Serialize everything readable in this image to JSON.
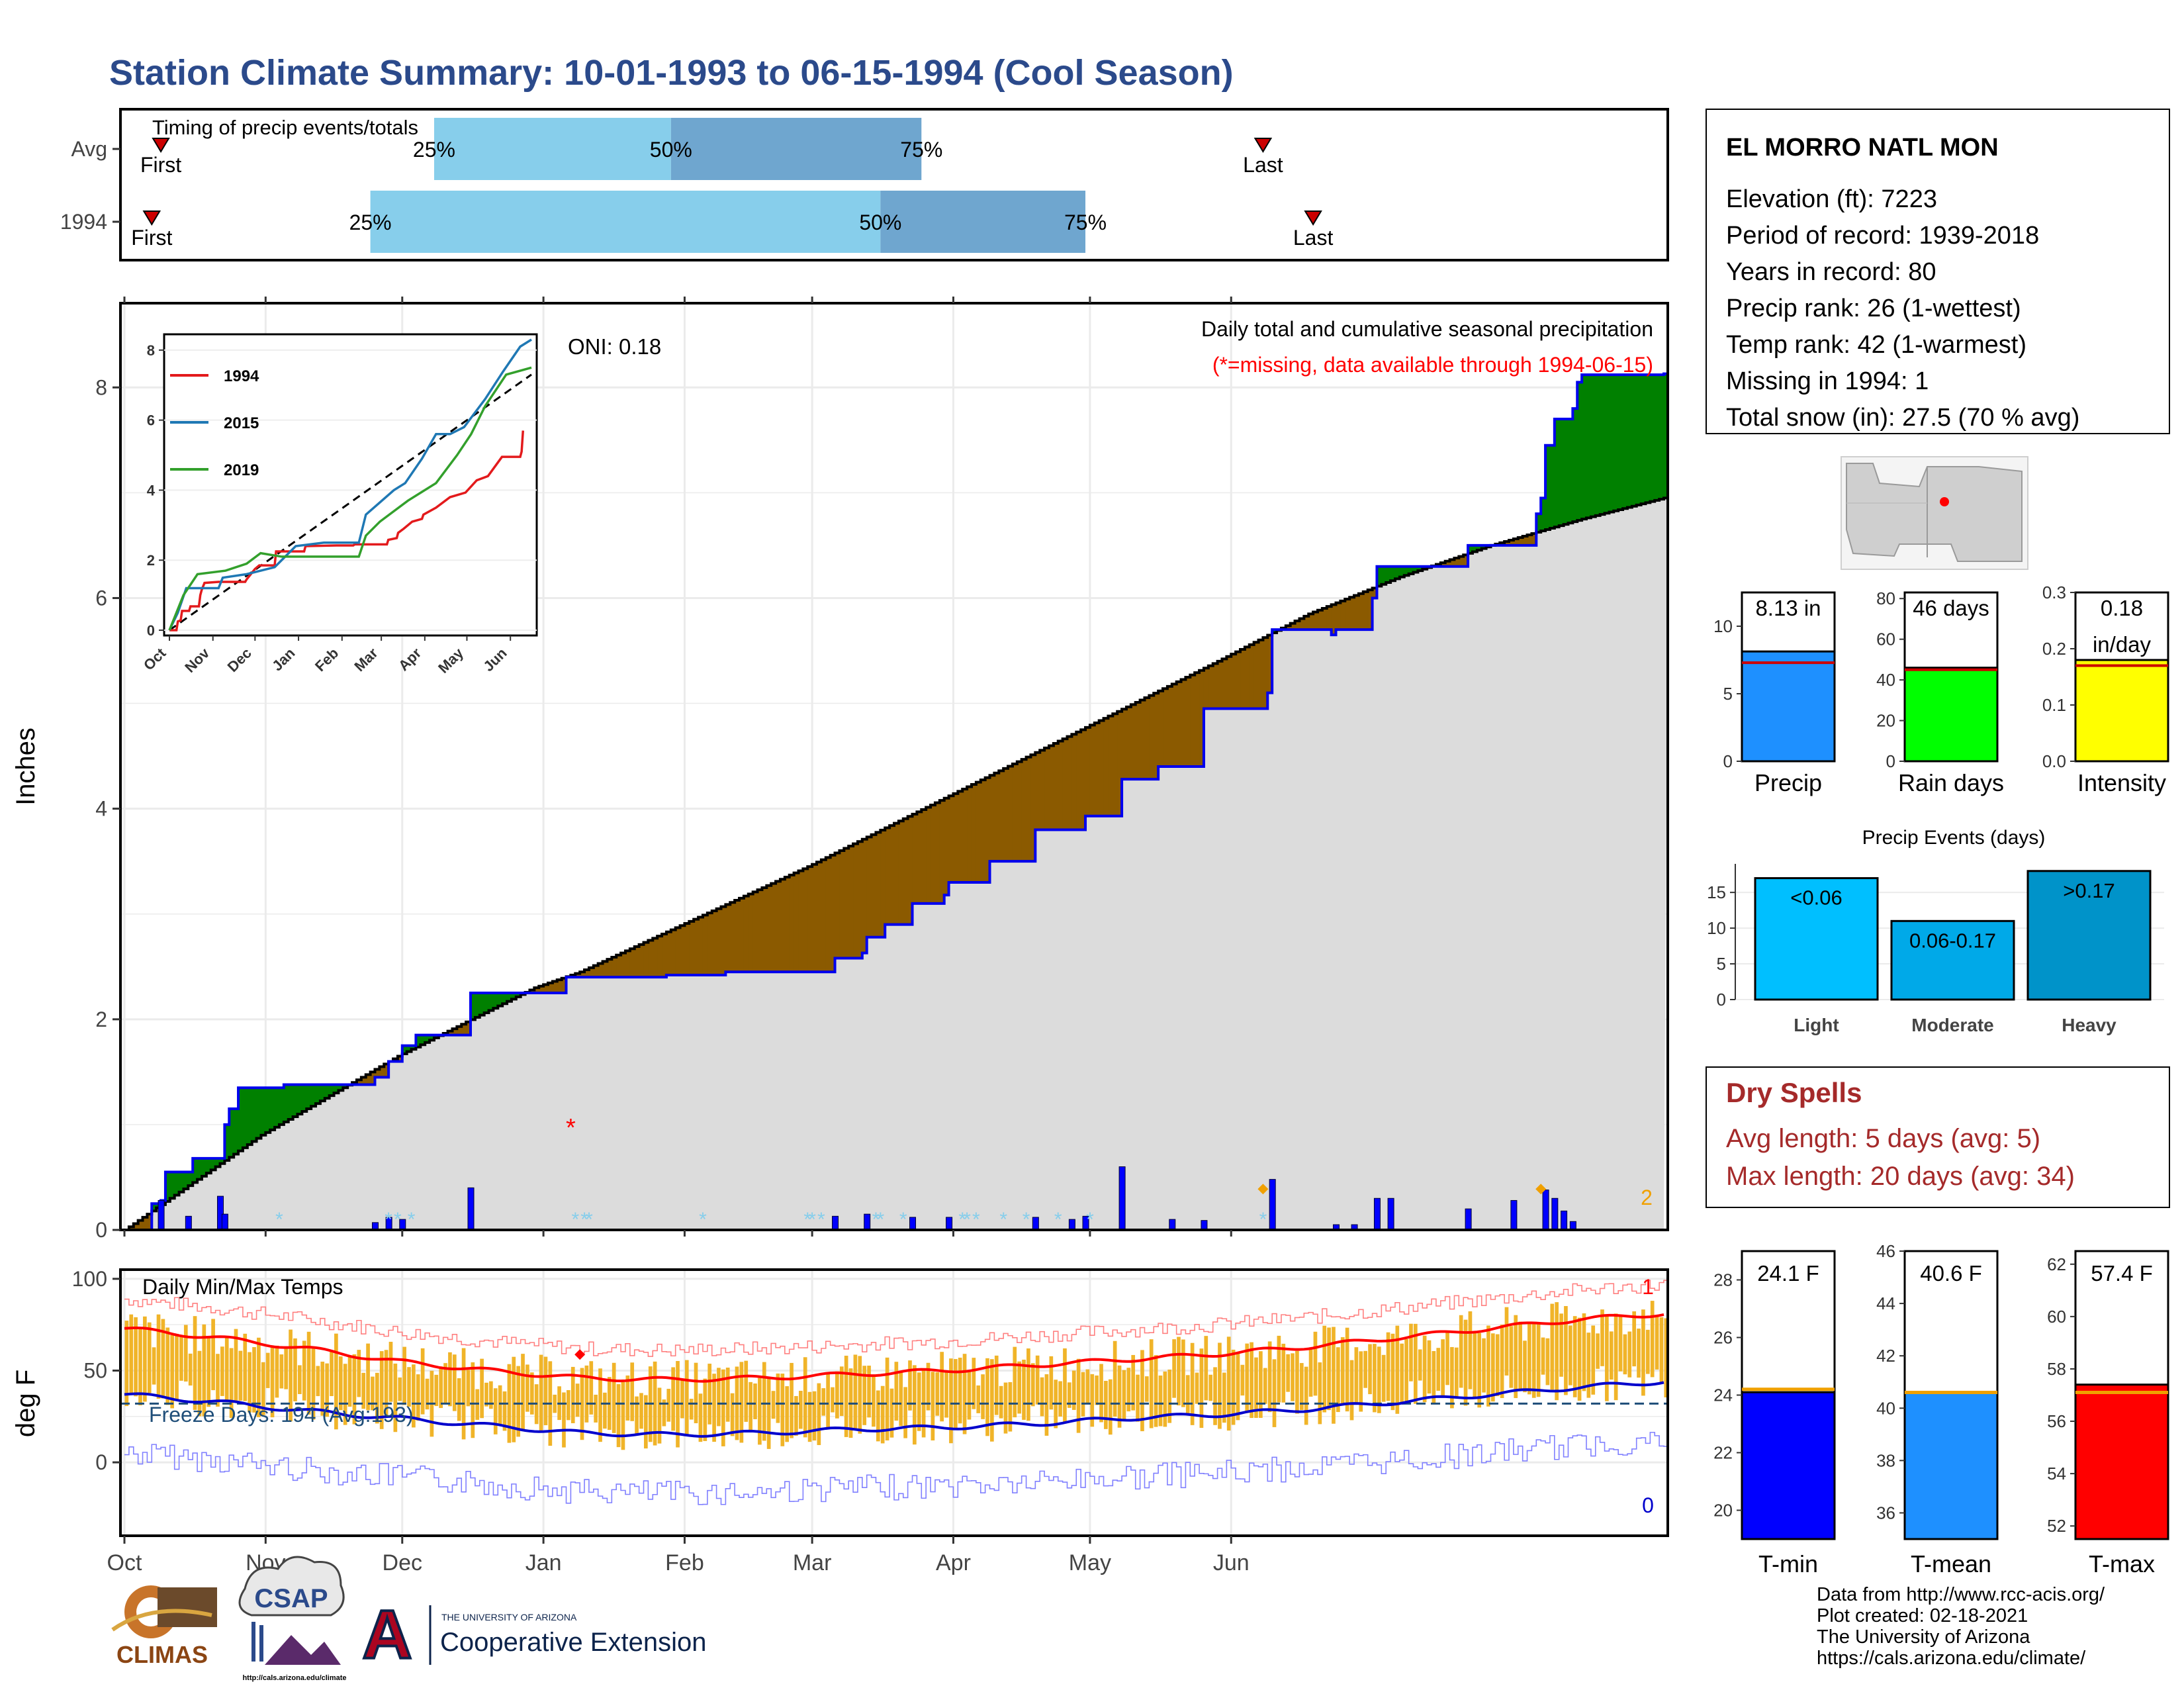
{
  "title": "Station Climate Summary: 10-01-1993 to 06-15-1994 (Cool Season)",
  "colors": {
    "title": "#2b4a8b",
    "q1": "#87ceeb",
    "q2": "#6fa6cf",
    "marker": "#cc0000",
    "above": "#008000",
    "below": "#8b5a00",
    "cumline": "#0000ee",
    "bars": "#0000ff",
    "snow": "#87ceeb",
    "avgcum": "#dcdcdc",
    "temp_bar": "#f0b429",
    "tmax": "#ff0000",
    "tmin": "#0000cc",
    "frost_line": "#1f4e79",
    "dry": "#a52a2a"
  },
  "timing": {
    "label": "Timing of precip events/totals",
    "rows": [
      {
        "name": "Avg",
        "first_label": "First",
        "last_label": "Last",
        "first": 8,
        "p25": 68,
        "p50": 120,
        "p75": 175,
        "last": 250
      },
      {
        "name": "1994",
        "first_label": "First",
        "last_label": "Last",
        "first": 6,
        "p25": 54,
        "p50": 166,
        "p75": 211,
        "last": 261
      }
    ],
    "pct_labels": [
      "25%",
      "50%",
      "75%"
    ]
  },
  "precip_panel": {
    "header": "Daily total and cumulative seasonal precipitation",
    "missing_note": "(*=missing, data available through 1994-06-15)",
    "oni": "ONI: 0.18",
    "ylabel": "Inches",
    "yticks": [
      "0",
      "2",
      "4",
      "6",
      "8"
    ],
    "corner_count": "2"
  },
  "inset": {
    "yticks": [
      "0",
      "2",
      "4",
      "6",
      "8"
    ],
    "xticks": [
      "Oct",
      "Nov",
      "Dec",
      "Jan",
      "Feb",
      "Mar",
      "Apr",
      "May",
      "Jun"
    ],
    "legend": [
      {
        "name": "1994",
        "color": "#e31a1c"
      },
      {
        "name": "2015",
        "color": "#1f78b4"
      },
      {
        "name": "2019",
        "color": "#33a02c"
      }
    ]
  },
  "temp_panel": {
    "label": "Daily Min/Max Temps",
    "freeze": "Freeze Days: 194 (Avg:193)",
    "ylabel": "deg F",
    "yticks": [
      "0",
      "50",
      "100"
    ],
    "record_high_count": "1",
    "record_low_count": "0"
  },
  "xticks": [
    "Oct",
    "Nov",
    "Dec",
    "Jan",
    "Feb",
    "Mar",
    "Apr",
    "May",
    "Jun"
  ],
  "station": {
    "name": "EL MORRO NATL MON",
    "lines": [
      "Elevation (ft): 7223",
      "Period of record: 1939-2018",
      "Years in record: 80",
      "Precip rank: 26 (1-wettest)",
      "Temp rank: 42 (1-warmest)",
      "Missing in 1994: 1",
      "Total snow (in): 27.5 (70 % avg)"
    ]
  },
  "summary_bars": [
    {
      "label": "Precip",
      "value_label": "8.13 in",
      "value": 8.13,
      "avg": 7.3,
      "ymax": 12.5,
      "yticks": [
        "0",
        "5",
        "10"
      ],
      "color": "#1e90ff"
    },
    {
      "label": "Rain days",
      "value_label": "46 days",
      "value": 46,
      "avg": 45,
      "ymax": 83,
      "yticks": [
        "0",
        "20",
        "40",
        "60",
        "80"
      ],
      "color": "#00ff00"
    },
    {
      "label": "Intensity",
      "value_label": "0.18 in/day",
      "value": 0.18,
      "avg": 0.17,
      "ymax": 0.3,
      "yticks": [
        "0.0",
        "0.1",
        "0.2",
        "0.3"
      ],
      "color": "#ffff00"
    }
  ],
  "events": {
    "title": "Precip Events (days)",
    "yticks": [
      "0",
      "5",
      "10",
      "15"
    ],
    "ymax": 19,
    "bars": [
      {
        "label": "Light",
        "range": "<0.06",
        "value": 17,
        "color": "#00bfff"
      },
      {
        "label": "Moderate",
        "range": "0.06-0.17",
        "value": 11,
        "color": "#00a9e8"
      },
      {
        "label": "Heavy",
        "range": ">0.17",
        "value": 18,
        "color": "#0093c9"
      }
    ]
  },
  "dry_spells": {
    "title": "Dry Spells",
    "avg": "Avg length: 5 days (avg: 5)",
    "max": "Max length: 20 days (avg: 34)"
  },
  "temp_bars": [
    {
      "label": "T-min",
      "value_label": "24.1 F",
      "value": 24.1,
      "avg": 24.2,
      "ymin": 19,
      "ymax": 29,
      "ticks": [
        20,
        22,
        24,
        26,
        28
      ],
      "color": "#0000ff"
    },
    {
      "label": "T-mean",
      "value_label": "40.6 F",
      "value": 40.6,
      "avg": 40.6,
      "ymin": 35,
      "ymax": 46,
      "ticks": [
        36,
        38,
        40,
        42,
        44,
        46
      ],
      "color": "#1e90ff"
    },
    {
      "label": "T-max",
      "value_label": "57.4 F",
      "value": 57.4,
      "avg": 57.1,
      "ymin": 51.5,
      "ymax": 62.5,
      "ticks": [
        52,
        54,
        56,
        58,
        60,
        62
      ],
      "color": "#ff0000"
    }
  ],
  "credits": [
    "Data from http://www.rcc-acis.org/",
    "Plot created: 02-18-2021",
    "The University of Arizona",
    "https://cals.arizona.edu/climate/"
  ],
  "logos": {
    "climas": "CLIMAS",
    "csap": "CSAP",
    "csap_url": "http://cals.arizona.edu/climate",
    "ua_letter": "A",
    "ua_small": "THE UNIVERSITY OF ARIZONA",
    "ua_big": "Cooperative Extension"
  },
  "chart_data": [
    {
      "type": "area",
      "title": "Daily total and cumulative seasonal precipitation",
      "ylabel": "Inches",
      "ylim": [
        0,
        8.8
      ],
      "x_unit": "day of season (0 = Oct 1 1993)",
      "cumulative_1994": [
        [
          0,
          0
        ],
        [
          5,
          0
        ],
        [
          6,
          0.25
        ],
        [
          8,
          0.28
        ],
        [
          9,
          0.55
        ],
        [
          14,
          0.55
        ],
        [
          15,
          0.68
        ],
        [
          21,
          0.68
        ],
        [
          22,
          1.0
        ],
        [
          23,
          1.15
        ],
        [
          25,
          1.35
        ],
        [
          35,
          1.38
        ],
        [
          54,
          1.38
        ],
        [
          55,
          1.45
        ],
        [
          58,
          1.6
        ],
        [
          61,
          1.75
        ],
        [
          64,
          1.85
        ],
        [
          75,
          1.85
        ],
        [
          76,
          2.25
        ],
        [
          96,
          2.25
        ],
        [
          97,
          2.4
        ],
        [
          119,
          2.42
        ],
        [
          131,
          2.42
        ],
        [
          132,
          2.45
        ],
        [
          155,
          2.45
        ],
        [
          156,
          2.58
        ],
        [
          162,
          2.63
        ],
        [
          163,
          2.78
        ],
        [
          167,
          2.9
        ],
        [
          173,
          3.1
        ],
        [
          180,
          3.18
        ],
        [
          181,
          3.3
        ],
        [
          190,
          3.5
        ],
        [
          200,
          3.8
        ],
        [
          211,
          3.93
        ],
        [
          219,
          4.28
        ],
        [
          227,
          4.4
        ],
        [
          237,
          4.95
        ],
        [
          250,
          4.95
        ],
        [
          251,
          5.1
        ],
        [
          252,
          5.7
        ],
        [
          265,
          5.65
        ],
        [
          266,
          5.7
        ],
        [
          274,
          6.0
        ],
        [
          275,
          6.3
        ],
        [
          294,
          6.3
        ],
        [
          295,
          6.5
        ],
        [
          310,
          6.8
        ],
        [
          311,
          6.95
        ],
        [
          312,
          7.45
        ],
        [
          314,
          7.7
        ],
        [
          318,
          7.8
        ],
        [
          319,
          8.05
        ],
        [
          320,
          8.12
        ],
        [
          338,
          8.13
        ]
      ],
      "average_cumulative": [
        [
          0,
          0
        ],
        [
          30,
          0.9
        ],
        [
          60,
          1.65
        ],
        [
          90,
          2.3
        ],
        [
          100,
          2.45
        ],
        [
          120,
          2.85
        ],
        [
          150,
          3.45
        ],
        [
          180,
          4.1
        ],
        [
          210,
          4.75
        ],
        [
          240,
          5.4
        ],
        [
          260,
          5.85
        ],
        [
          280,
          6.2
        ],
        [
          300,
          6.5
        ],
        [
          320,
          6.75
        ],
        [
          338,
          6.95
        ]
      ],
      "daily_precip": [
        [
          8,
          0.28
        ],
        [
          14,
          0.13
        ],
        [
          21,
          0.32
        ],
        [
          22,
          0.15
        ],
        [
          55,
          0.07
        ],
        [
          58,
          0.12
        ],
        [
          61,
          0.1
        ],
        [
          76,
          0.4
        ],
        [
          156,
          0.13
        ],
        [
          163,
          0.15
        ],
        [
          173,
          0.12
        ],
        [
          181,
          0.12
        ],
        [
          200,
          0.12
        ],
        [
          208,
          0.1
        ],
        [
          211,
          0.13
        ],
        [
          219,
          0.6
        ],
        [
          230,
          0.1
        ],
        [
          237,
          0.09
        ],
        [
          252,
          0.48
        ],
        [
          266,
          0.05
        ],
        [
          270,
          0.05
        ],
        [
          275,
          0.3
        ],
        [
          278,
          0.3
        ],
        [
          295,
          0.2
        ],
        [
          305,
          0.28
        ],
        [
          312,
          0.38
        ],
        [
          314,
          0.3
        ],
        [
          316,
          0.18
        ],
        [
          318,
          0.08
        ]
      ],
      "missing_day": 98,
      "snow_days": [
        34,
        58,
        60,
        63,
        99,
        101,
        102,
        127,
        150,
        151,
        153,
        165,
        166,
        171,
        184,
        185,
        187,
        193,
        198,
        205,
        212,
        250
      ],
      "record_days": [
        250,
        311
      ]
    },
    {
      "type": "line",
      "title": "Daily Min/Max Temps",
      "ylabel": "deg F",
      "ylim": [
        -40,
        105
      ],
      "freeze_days": 194,
      "freeze_days_avg": 193,
      "avg_tmax": [
        [
          0,
          73
        ],
        [
          20,
          68
        ],
        [
          40,
          62
        ],
        [
          60,
          55
        ],
        [
          80,
          50
        ],
        [
          100,
          46
        ],
        [
          120,
          45
        ],
        [
          140,
          46
        ],
        [
          160,
          48
        ],
        [
          180,
          50
        ],
        [
          200,
          53
        ],
        [
          220,
          56
        ],
        [
          240,
          59
        ],
        [
          260,
          63
        ],
        [
          280,
          68
        ],
        [
          300,
          73
        ],
        [
          320,
          78
        ],
        [
          338,
          81
        ]
      ],
      "avg_tmin": [
        [
          0,
          37
        ],
        [
          20,
          33
        ],
        [
          40,
          28
        ],
        [
          60,
          24
        ],
        [
          80,
          20
        ],
        [
          100,
          16
        ],
        [
          120,
          15
        ],
        [
          140,
          16
        ],
        [
          160,
          18
        ],
        [
          180,
          19
        ],
        [
          200,
          21
        ],
        [
          220,
          24
        ],
        [
          240,
          26
        ],
        [
          260,
          29
        ],
        [
          280,
          33
        ],
        [
          300,
          37
        ],
        [
          320,
          41
        ],
        [
          338,
          44
        ]
      ]
    },
    {
      "type": "bar",
      "title": "Precip Events (days)",
      "categories": [
        "Light",
        "Moderate",
        "Heavy"
      ],
      "values": [
        17,
        11,
        18
      ],
      "ylim": [
        0,
        19
      ]
    },
    {
      "type": "bar",
      "categories": [
        "Precip",
        "Rain days",
        "Intensity"
      ],
      "values": [
        8.13,
        46,
        0.18
      ]
    },
    {
      "type": "bar",
      "categories": [
        "T-min",
        "T-mean",
        "T-max"
      ],
      "values": [
        24.1,
        40.6,
        57.4
      ]
    }
  ]
}
